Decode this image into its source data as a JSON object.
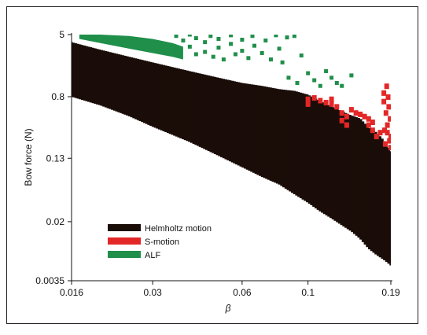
{
  "chart_data": {
    "type": "scatter",
    "title": "",
    "xlabel": "β",
    "ylabel": "Bow force (N)",
    "x_scale": "log",
    "y_scale": "log",
    "xlim": [
      0.016,
      0.19
    ],
    "ylim": [
      0.0035,
      5
    ],
    "x_ticks": [
      {
        "value": 0.016,
        "label": "0.016"
      },
      {
        "value": 0.03,
        "label": "0.03"
      },
      {
        "value": 0.06,
        "label": "0.06"
      },
      {
        "value": 0.1,
        "label": "0.1"
      },
      {
        "value": 0.19,
        "label": "0.19"
      }
    ],
    "y_ticks": [
      {
        "value": 5,
        "label": "5"
      },
      {
        "value": 0.8,
        "label": "0.8"
      },
      {
        "value": 0.13,
        "label": "0.13"
      },
      {
        "value": 0.02,
        "label": "0.02"
      },
      {
        "value": 0.0035,
        "label": "0.0035"
      }
    ],
    "legend_position": "bottom-left",
    "series": [
      {
        "name": "Helmholtz motion",
        "color": "#1a0d08",
        "x": [
          0.016,
          0.02,
          0.025,
          0.03,
          0.04,
          0.05,
          0.06,
          0.07,
          0.08,
          0.09,
          0.1,
          0.11,
          0.12,
          0.13,
          0.14,
          0.15,
          0.16,
          0.17,
          0.18,
          0.19
        ],
        "y_min": [
          0.8,
          0.62,
          0.45,
          0.33,
          0.21,
          0.14,
          0.1,
          0.075,
          0.06,
          0.045,
          0.035,
          0.027,
          0.022,
          0.018,
          0.015,
          0.012,
          0.009,
          0.0075,
          0.0065,
          0.0055
        ],
        "y_max": [
          4.0,
          3.2,
          2.6,
          2.2,
          1.7,
          1.4,
          1.2,
          1.1,
          1.0,
          0.95,
          0.85,
          0.7,
          0.6,
          0.52,
          0.46,
          0.42,
          0.32,
          0.28,
          0.22,
          0.16
        ]
      },
      {
        "name": "S-motion",
        "color": "#e32727",
        "points": [
          [
            0.1,
            0.75
          ],
          [
            0.1,
            0.65
          ],
          [
            0.105,
            0.78
          ],
          [
            0.11,
            0.72
          ],
          [
            0.115,
            0.68
          ],
          [
            0.12,
            0.75
          ],
          [
            0.12,
            0.65
          ],
          [
            0.125,
            0.6
          ],
          [
            0.13,
            0.5
          ],
          [
            0.13,
            0.4
          ],
          [
            0.135,
            0.35
          ],
          [
            0.135,
            0.45
          ],
          [
            0.14,
            0.55
          ],
          [
            0.145,
            0.5
          ],
          [
            0.15,
            0.48
          ],
          [
            0.155,
            0.45
          ],
          [
            0.16,
            0.42
          ],
          [
            0.16,
            0.35
          ],
          [
            0.165,
            0.3
          ],
          [
            0.165,
            0.38
          ],
          [
            0.17,
            0.25
          ],
          [
            0.175,
            0.28
          ],
          [
            0.18,
            0.7
          ],
          [
            0.18,
            0.9
          ],
          [
            0.183,
            0.5
          ],
          [
            0.185,
            0.35
          ],
          [
            0.185,
            0.28
          ],
          [
            0.188,
            0.22
          ],
          [
            0.19,
            0.18
          ],
          [
            0.19,
            0.25
          ],
          [
            0.182,
            0.2
          ],
          [
            0.187,
            0.6
          ],
          [
            0.189,
            0.42
          ],
          [
            0.184,
            1.1
          ],
          [
            0.186,
            0.8
          ],
          [
            0.181,
            0.3
          ]
        ]
      },
      {
        "name": "ALF",
        "color": "#1f8f4a",
        "band": {
          "x": [
            0.017,
            0.02,
            0.025,
            0.03,
            0.035,
            0.038
          ],
          "y_top": [
            5.0,
            5.0,
            4.8,
            4.4,
            3.9,
            3.5
          ],
          "y_bottom": [
            4.4,
            3.9,
            3.3,
            2.9,
            2.6,
            2.4
          ]
        },
        "points": [
          [
            0.036,
            4.8
          ],
          [
            0.036,
            3.2
          ],
          [
            0.038,
            4.2
          ],
          [
            0.04,
            5.0
          ],
          [
            0.04,
            3.5
          ],
          [
            0.042,
            4.5
          ],
          [
            0.042,
            2.8
          ],
          [
            0.045,
            4.0
          ],
          [
            0.045,
            3.0
          ],
          [
            0.047,
            4.8
          ],
          [
            0.048,
            2.6
          ],
          [
            0.05,
            4.4
          ],
          [
            0.05,
            3.4
          ],
          [
            0.052,
            2.4
          ],
          [
            0.055,
            4.9
          ],
          [
            0.055,
            3.8
          ],
          [
            0.057,
            2.8
          ],
          [
            0.06,
            4.3
          ],
          [
            0.06,
            3.1
          ],
          [
            0.063,
            2.5
          ],
          [
            0.065,
            4.8
          ],
          [
            0.066,
            3.6
          ],
          [
            0.07,
            2.9
          ],
          [
            0.072,
            4.2
          ],
          [
            0.075,
            2.4
          ],
          [
            0.078,
            4.9
          ],
          [
            0.08,
            3.3
          ],
          [
            0.082,
            2.2
          ],
          [
            0.085,
            4.6
          ],
          [
            0.086,
            1.4
          ],
          [
            0.09,
            4.8
          ],
          [
            0.092,
            1.2
          ],
          [
            0.095,
            2.7
          ],
          [
            0.1,
            1.6
          ],
          [
            0.105,
            1.3
          ],
          [
            0.11,
            1.1
          ],
          [
            0.115,
            1.7
          ],
          [
            0.12,
            1.4
          ],
          [
            0.125,
            1.2
          ],
          [
            0.13,
            1.1
          ],
          [
            0.14,
            1.5
          ]
        ]
      }
    ]
  }
}
